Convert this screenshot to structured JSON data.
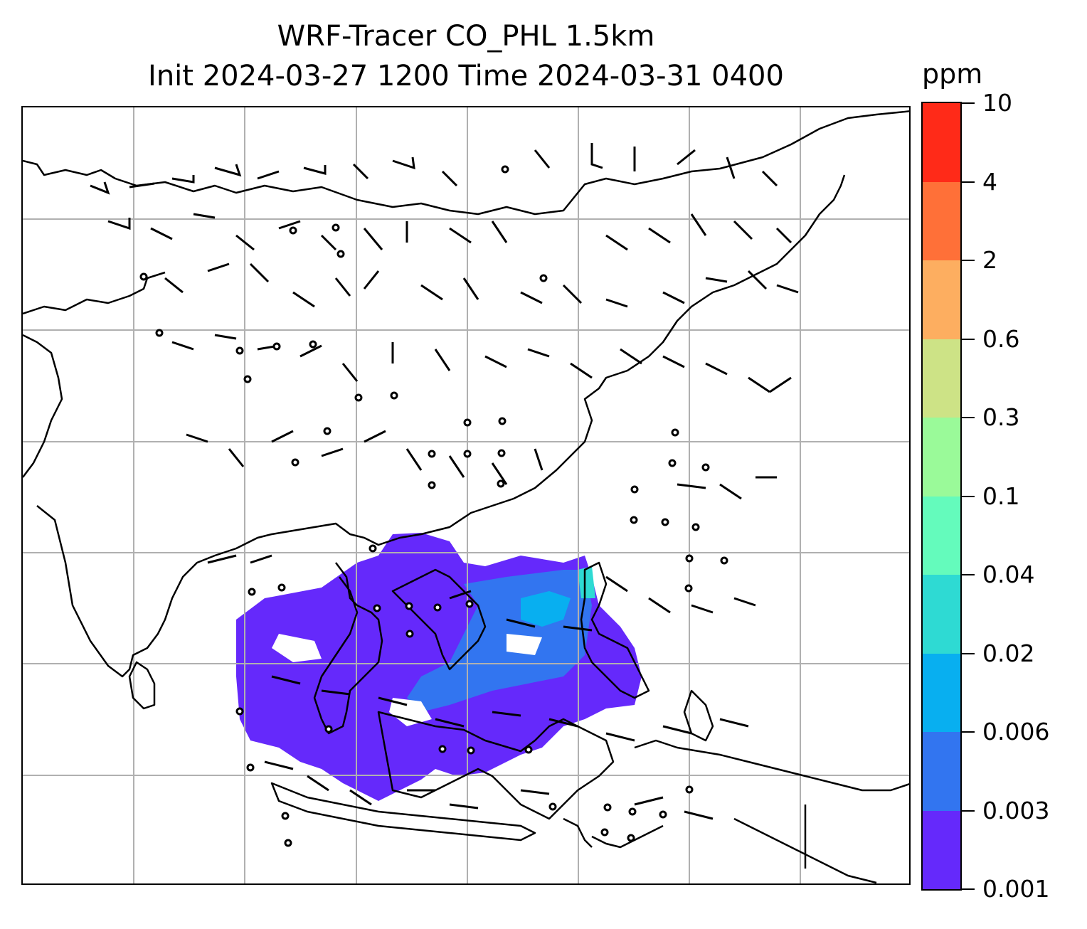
{
  "title": {
    "line1": "WRF-Tracer CO_PHL 1.5km",
    "line2": "Init 2024-03-27 1200 Time 2024-03-31 0400"
  },
  "colorbar": {
    "unit": "ppm",
    "ticks": [
      "0.001",
      "0.003",
      "0.006",
      "0.02",
      "0.04",
      "0.1",
      "0.3",
      "0.6",
      "2",
      "4",
      "10"
    ],
    "colors": [
      "#6529fb",
      "#3275f0",
      "#08aff0",
      "#2edad3",
      "#64fbbc",
      "#9afa99",
      "#cde386",
      "#fdae60",
      "#ff7038",
      "#ff2a18"
    ]
  },
  "map": {
    "projection": "regional lat-lon",
    "gridlines": true,
    "coastlines": true,
    "wind_barbs": true,
    "field": "CO tracer concentration (filled contours)",
    "colors": {
      "grid": "#b0b0b0",
      "lines": "#000000"
    }
  }
}
